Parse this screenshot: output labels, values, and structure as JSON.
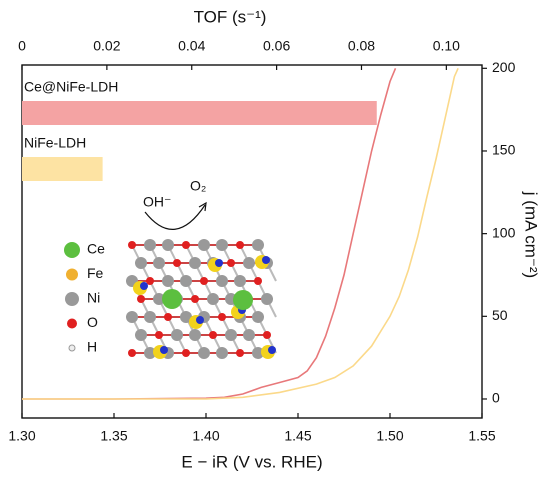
{
  "chart_data": [
    {
      "type": "line",
      "x_label": "E − iR (V vs. RHE)",
      "y_label": "j  (mA cm⁻²)",
      "xlim": [
        1.3,
        1.55
      ],
      "xticks": [
        {
          "value": 1.3,
          "label": "1.30"
        },
        1.35,
        {
          "value": 1.4,
          "label": "1.40"
        },
        1.45,
        {
          "value": 1.5,
          "label": "1.50"
        },
        1.55
      ],
      "ylim": [
        -11.5,
        202
      ],
      "yticks": [
        0,
        50,
        100,
        150,
        200
      ],
      "series": [
        {
          "name": "Ce@NiFe-LDH",
          "color": "#e8787a",
          "x": [
            1.3,
            1.35,
            1.4,
            1.41,
            1.42,
            1.43,
            1.44,
            1.45,
            1.455,
            1.46,
            1.465,
            1.47,
            1.475,
            1.48,
            1.485,
            1.49,
            1.495,
            1.5,
            1.503
          ],
          "values": [
            0,
            0,
            0.5,
            1,
            3,
            7,
            10,
            13,
            17,
            25,
            38,
            55,
            75,
            100,
            125,
            150,
            172,
            192,
            200
          ]
        },
        {
          "name": "NiFe-LDH",
          "color": "#fbd98a",
          "x": [
            1.3,
            1.4,
            1.42,
            1.44,
            1.46,
            1.47,
            1.48,
            1.49,
            1.5,
            1.505,
            1.51,
            1.515,
            1.52,
            1.525,
            1.53,
            1.535,
            1.537
          ],
          "values": [
            0,
            0,
            1,
            4,
            9,
            13,
            20,
            32,
            50,
            62,
            78,
            98,
            122,
            145,
            170,
            195,
            200
          ]
        }
      ]
    },
    {
      "type": "bar",
      "x_label": "TOF (s⁻¹)",
      "xlim": [
        0,
        0.1084
      ],
      "xticks": [
        0,
        0.02,
        0.04,
        0.06,
        0.08,
        {
          "value": 0.1,
          "label": "0.10"
        }
      ],
      "categories": [
        "Ce@NiFe-LDH",
        "NiFe-LDH"
      ],
      "values": [
        0.0836,
        0.019
      ],
      "colors": [
        "#f4a3a3",
        "#fde3a3"
      ]
    }
  ],
  "inset": {
    "legend": [
      "Ce",
      "Fe",
      "Ni",
      "O",
      "H"
    ],
    "reactant": "OH⁻",
    "product": "O₂"
  }
}
